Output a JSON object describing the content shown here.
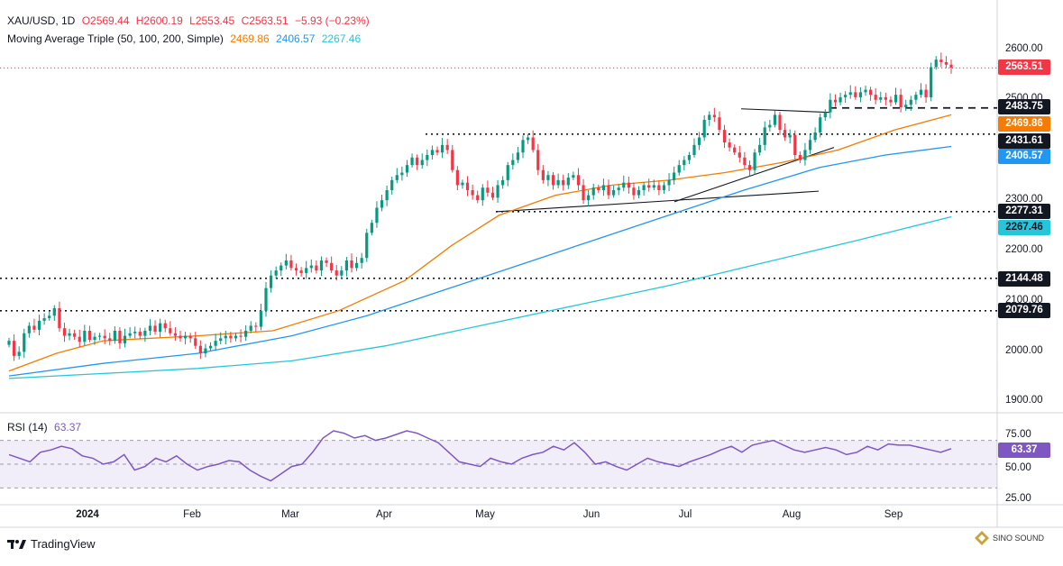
{
  "header": {
    "symbol": "XAU/USD, 1D",
    "open": "O2569.44",
    "high": "H2600.19",
    "low": "L2553.45",
    "close": "C2563.51",
    "change": "−5.93 (−0.23%)",
    "ma_title": "Moving Average Triple (50, 100, 200, Simple)",
    "ma50_value": "2469.86",
    "ma100_value": "2406.57",
    "ma200_value": "2267.46"
  },
  "rsi_header": {
    "title": "RSI (14)",
    "value": "63.37"
  },
  "colors": {
    "up": "#089981",
    "down": "#f23645",
    "ma50": "#f57c00",
    "ma100": "#2196f3",
    "ma200": "#26c6da",
    "rsi": "#7e57c2",
    "price_line": "#f23645"
  },
  "price_axis": {
    "ticks": [
      "2600.00",
      "2500.00",
      "2300.00",
      "2200.00",
      "2100.00",
      "2000.00",
      "1900.00"
    ]
  },
  "rsi_axis": {
    "ticks": [
      "75.00",
      "50.00",
      "25.00"
    ]
  },
  "price_tags": [
    {
      "text": "2563.51",
      "bg": "#f23645",
      "fg": "#ffffff"
    },
    {
      "text": "2483.75",
      "bg": "#131722",
      "fg": "#ffffff"
    },
    {
      "text": "2469.86",
      "bg": "#f57c00",
      "fg": "#ffffff"
    },
    {
      "text": "2431.61",
      "bg": "#131722",
      "fg": "#ffffff"
    },
    {
      "text": "2406.57",
      "bg": "#2196f3",
      "fg": "#ffffff"
    },
    {
      "text": "2277.31",
      "bg": "#131722",
      "fg": "#ffffff"
    },
    {
      "text": "2267.46",
      "bg": "#26c6da",
      "fg": "#131722"
    },
    {
      "text": "2144.48",
      "bg": "#131722",
      "fg": "#ffffff"
    },
    {
      "text": "2079.76",
      "bg": "#131722",
      "fg": "#ffffff"
    }
  ],
  "rsi_tag": {
    "text": "63.37",
    "bg": "#7e57c2",
    "fg": "#ffffff"
  },
  "x_axis": {
    "labels": [
      "2024",
      "Feb",
      "Mar",
      "Apr",
      "May",
      "Jun",
      "Jul",
      "Aug",
      "Sep"
    ]
  },
  "footer": {
    "brand": "TradingView",
    "watermark": "SINO SOUND"
  },
  "chart_data": {
    "type": "candlestick",
    "symbol": "XAU/USD",
    "timeframe": "1D",
    "period": "Dec 2023 - Sep 2024",
    "last": {
      "open": 2569.44,
      "high": 2600.19,
      "low": 2553.45,
      "close": 2563.51,
      "change": -5.93,
      "change_pct": -0.23
    },
    "price_ylim": [
      1880,
      2620
    ],
    "close_path": [
      {
        "month": "Dec 2023",
        "values": [
          2020,
          1990,
          1998,
          2035,
          2050,
          2042,
          2060,
          2065
        ]
      },
      {
        "month": "Jan 2024",
        "values": [
          2070,
          2085,
          2045,
          2030,
          2035,
          2028,
          2018,
          2040,
          2022,
          2028,
          2030,
          2025,
          2020,
          2040,
          2015,
          2030,
          2035,
          2038,
          2030,
          2040,
          2050,
          2038
        ]
      },
      {
        "month": "Feb 2024",
        "values": [
          2055,
          2045,
          2035,
          2030,
          2025,
          2030,
          2025,
          2010,
          1995,
          2005,
          2010,
          2020,
          2025,
          2030,
          2025,
          2030,
          2028,
          2040,
          2050,
          2048
        ]
      },
      {
        "month": "Mar 2024",
        "values": [
          2080,
          2125,
          2150,
          2160,
          2170,
          2180,
          2165,
          2160,
          2155,
          2165,
          2170,
          2160,
          2180,
          2175,
          2160,
          2150,
          2160,
          2180,
          2165,
          2175,
          2185
        ]
      },
      {
        "month": "Apr 2024",
        "values": [
          2235,
          2255,
          2285,
          2300,
          2320,
          2340,
          2350,
          2355,
          2370,
          2385,
          2370,
          2380,
          2390,
          2400,
          2395,
          2410,
          2400,
          2360,
          2330,
          2335
        ]
      },
      {
        "month": "May 2024",
        "values": [
          2320,
          2310,
          2300,
          2325,
          2315,
          2305,
          2330,
          2340,
          2370,
          2380,
          2395,
          2420,
          2425,
          2400,
          2360,
          2340,
          2350,
          2330,
          2340,
          2330,
          2345
        ]
      },
      {
        "month": "Jun 2024",
        "values": [
          2350,
          2330,
          2300,
          2310,
          2325,
          2320,
          2330,
          2310,
          2320,
          2325,
          2335,
          2325,
          2310,
          2320,
          2330,
          2325,
          2330,
          2320,
          2330
        ]
      },
      {
        "month": "Jul 2024",
        "values": [
          2340,
          2355,
          2370,
          2380,
          2390,
          2410,
          2425,
          2460,
          2470,
          2465,
          2440,
          2415,
          2405,
          2395,
          2385,
          2370,
          2360,
          2395,
          2410,
          2445,
          2450,
          2470
        ]
      },
      {
        "month": "Aug 2024",
        "values": [
          2440,
          2425,
          2430,
          2390,
          2380,
          2400,
          2420,
          2435,
          2465,
          2475,
          2500,
          2495,
          2505,
          2510,
          2515,
          2505,
          2515,
          2520,
          2510,
          2500,
          2505,
          2500
        ]
      },
      {
        "month": "Sep 2024",
        "values": [
          2495,
          2510,
          2485,
          2490,
          2500,
          2510,
          2520,
          2505,
          2565,
          2580,
          2575,
          2570,
          2564
        ]
      }
    ],
    "moving_averages": [
      {
        "name": "MA 50",
        "color": "#f57c00",
        "last": 2469.86,
        "points": [
          [
            0,
            1960
          ],
          [
            0.05,
            1995
          ],
          [
            0.1,
            2020
          ],
          [
            0.2,
            2030
          ],
          [
            0.28,
            2040
          ],
          [
            0.35,
            2080
          ],
          [
            0.42,
            2140
          ],
          [
            0.47,
            2210
          ],
          [
            0.52,
            2270
          ],
          [
            0.58,
            2310
          ],
          [
            0.64,
            2330
          ],
          [
            0.7,
            2340
          ],
          [
            0.76,
            2355
          ],
          [
            0.82,
            2375
          ],
          [
            0.88,
            2400
          ],
          [
            0.94,
            2440
          ],
          [
            1.0,
            2470
          ]
        ]
      },
      {
        "name": "MA 100",
        "color": "#2196f3",
        "last": 2406.57,
        "points": [
          [
            0,
            1950
          ],
          [
            0.1,
            1975
          ],
          [
            0.2,
            1995
          ],
          [
            0.3,
            2030
          ],
          [
            0.38,
            2070
          ],
          [
            0.46,
            2120
          ],
          [
            0.54,
            2170
          ],
          [
            0.62,
            2220
          ],
          [
            0.7,
            2270
          ],
          [
            0.78,
            2320
          ],
          [
            0.86,
            2365
          ],
          [
            0.93,
            2390
          ],
          [
            1.0,
            2407
          ]
        ]
      },
      {
        "name": "MA 200",
        "color": "#26c6da",
        "last": 2267.46,
        "points": [
          [
            0,
            1945
          ],
          [
            0.1,
            1955
          ],
          [
            0.2,
            1965
          ],
          [
            0.3,
            1980
          ],
          [
            0.4,
            2010
          ],
          [
            0.5,
            2050
          ],
          [
            0.6,
            2090
          ],
          [
            0.7,
            2130
          ],
          [
            0.8,
            2175
          ],
          [
            0.9,
            2220
          ],
          [
            1.0,
            2267
          ]
        ]
      }
    ],
    "horizontal_levels": [
      2483.75,
      2431.61,
      2277.31,
      2144.48,
      2079.76
    ],
    "rsi": {
      "period": 14,
      "last": 63.37,
      "ylim": [
        20,
        85
      ],
      "levels": [
        70,
        30,
        50
      ],
      "values": [
        58,
        55,
        52,
        60,
        62,
        65,
        63,
        57,
        55,
        50,
        52,
        58,
        45,
        48,
        55,
        52,
        57,
        50,
        45,
        48,
        50,
        53,
        52,
        45,
        40,
        36,
        42,
        48,
        50,
        60,
        72,
        78,
        76,
        72,
        74,
        70,
        72,
        75,
        78,
        76,
        72,
        68,
        60,
        52,
        50,
        48,
        55,
        52,
        50,
        55,
        58,
        60,
        65,
        62,
        68,
        60,
        50,
        52,
        48,
        45,
        50,
        55,
        52,
        50,
        48,
        52,
        55,
        58,
        62,
        65,
        60,
        66,
        68,
        70,
        66,
        62,
        60,
        62,
        64,
        62,
        58,
        60,
        65,
        62,
        67,
        66,
        66,
        64,
        62,
        60,
        63
      ]
    }
  }
}
